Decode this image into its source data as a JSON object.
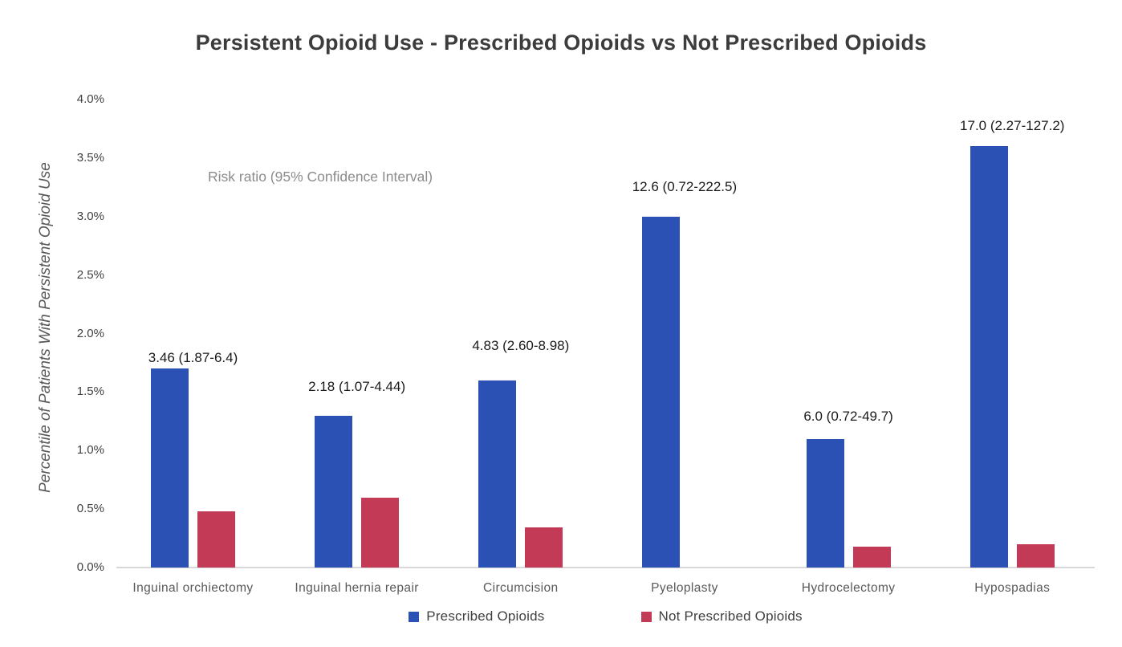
{
  "title": "Persistent Opioid Use - Prescribed Opioids vs Not Prescribed Opioids",
  "annotation": "Risk ratio (95% Confidence Interval)",
  "colors": {
    "prescribed_blue": "#2B51B5",
    "not_prescribed_red": "#C23A56",
    "title_text": "#3C3C3C",
    "tick_text": "#404040",
    "category_text": "#595959",
    "data_label_text": "#1A1A1A",
    "annotation_text": "#8C8C8C",
    "axis_line": "#D8D8D8"
  },
  "chart_data": {
    "type": "bar",
    "title": "Persistent Opioid Use - Prescribed Opioids vs Not Prescribed Opioids",
    "xlabel": "",
    "ylabel": "Percentile of Patients With Persistent Opioid Use",
    "ylim": [
      0,
      4.0
    ],
    "ytick_labels": [
      "0.0%",
      "0.5%",
      "1.0%",
      "1.5%",
      "2.0%",
      "2.5%",
      "3.0%",
      "3.5%",
      "4.0%"
    ],
    "grid": false,
    "legend_position": "bottom",
    "annotation": "Risk ratio (95% Confidence Interval)",
    "categories": [
      "Inguinal orchiectomy",
      "Inguinal hernia repair",
      "Circumcision",
      "Pyeloplasty",
      "Hydrocelectomy",
      "Hypospadias"
    ],
    "series": [
      {
        "name": "Prescribed Opioids",
        "color": "#2B51B5",
        "values": [
          1.7,
          1.3,
          1.6,
          3.0,
          1.1,
          3.6
        ]
      },
      {
        "name": "Not Prescribed Opioids",
        "color": "#C23A56",
        "values": [
          0.48,
          0.6,
          0.34,
          0,
          0.18,
          0.2
        ]
      }
    ],
    "bar_labels": [
      "3.46 (1.87-6.4)",
      "2.18 (1.07-4.44)",
      "4.83 (2.60-8.98)",
      "12.6 (0.72-222.5)",
      "6.0 (0.72-49.7)",
      "17.0 (2.27-127.2)"
    ]
  },
  "legend": {
    "items": [
      {
        "label": "Prescribed Opioids",
        "color": "#2B51B5"
      },
      {
        "label": "Not Prescribed Opioids",
        "color": "#C23A56"
      }
    ]
  }
}
